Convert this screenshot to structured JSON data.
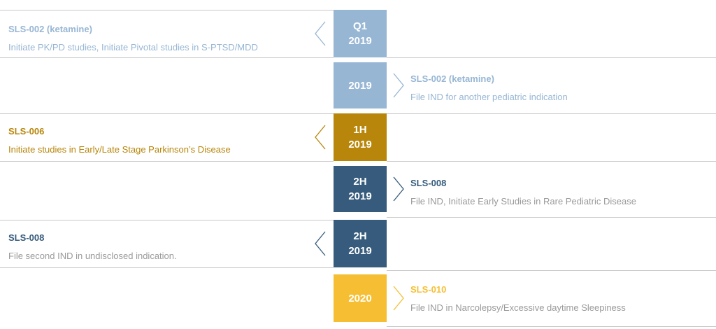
{
  "colors": {
    "light_blue": "#97b6d4",
    "gold": "#b8860b",
    "dark_blue": "#365b7c",
    "yellow": "#f6bf33",
    "gray_text": "#9a9a9a",
    "line": "#c9c9c9"
  },
  "milestones": [
    {
      "side": "left",
      "date_line1": "Q1",
      "date_line2": "2019",
      "title": "SLS-002 (ketamine)",
      "description": "Initiate PK/PD studies, Initiate Pivotal studies in S-PTSD/MDD",
      "color": "light_blue",
      "desc_color": "light_blue",
      "icon": "chevron-left-icon"
    },
    {
      "side": "right",
      "date_line1": "",
      "date_line2": "2019",
      "title": "SLS-002 (ketamine)",
      "description": "File IND for another pediatric indication",
      "color": "light_blue",
      "desc_color": "light_blue",
      "icon": "chevron-right-icon"
    },
    {
      "side": "left",
      "date_line1": "1H",
      "date_line2": "2019",
      "title": "SLS-006",
      "description": "Initiate studies in Early/Late Stage Parkinson’s Disease",
      "color": "gold",
      "desc_color": "gold",
      "icon": "chevron-left-icon"
    },
    {
      "side": "right",
      "date_line1": "2H",
      "date_line2": "2019",
      "title": "SLS-008",
      "description": "File IND, Initiate Early Studies in Rare Pediatric Disease",
      "color": "dark_blue",
      "desc_color": "gray_text",
      "icon": "chevron-right-icon"
    },
    {
      "side": "left",
      "date_line1": "2H",
      "date_line2": "2019",
      "title": "SLS-008",
      "description": "File second IND in undisclosed indication.",
      "color": "dark_blue",
      "desc_color": "gray_text",
      "icon": "chevron-left-icon"
    },
    {
      "side": "right",
      "date_line1": "",
      "date_line2": "2020",
      "title": "SLS-010",
      "description": "File IND in Narcolepsy/Excessive daytime Sleepiness",
      "color": "yellow",
      "desc_color": "gray_text",
      "icon": "chevron-right-icon"
    }
  ]
}
